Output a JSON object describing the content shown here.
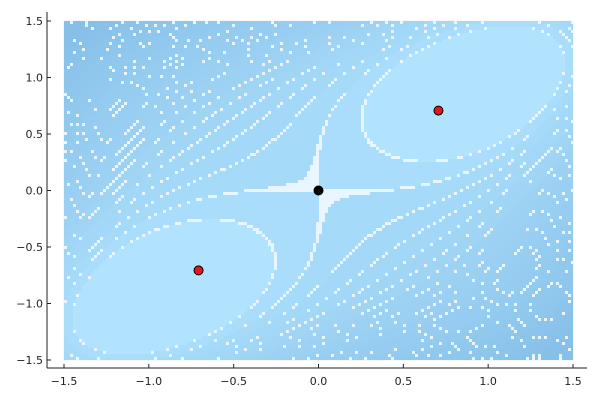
{
  "chart_data": {
    "type": "contour",
    "title": "",
    "xlabel": "",
    "ylabel": "",
    "xlim": [
      -1.5,
      1.5
    ],
    "ylim": [
      -1.5,
      1.5
    ],
    "xticks": [
      -1.5,
      -1.0,
      -0.5,
      0.0,
      0.5,
      1.0,
      1.5
    ],
    "yticks": [
      -1.5,
      -1.0,
      -0.5,
      0.0,
      0.5,
      1.0,
      1.5
    ],
    "tick_labels_x": [
      "−1.5",
      "−1.0",
      "−0.5",
      "0.0",
      "0.5",
      "1.0",
      "1.5"
    ],
    "tick_labels_y": [
      "−1.5",
      "−1.0",
      "−0.5",
      "0.0",
      "0.5",
      "1.0",
      "1.5"
    ],
    "grid": true,
    "legend": "none",
    "colors": {
      "fill_low": "#b1e3ff",
      "fill_high": "#86bfe8",
      "contour_line": "#e9f6ff",
      "minima_marker": "#e8141b",
      "saddle_marker": "#000000"
    },
    "points": [
      {
        "name": "minimum",
        "x": -0.707,
        "y": -0.707,
        "color": "#e8141b"
      },
      {
        "name": "saddle",
        "x": 0.0,
        "y": 0.0,
        "color": "#000000"
      },
      {
        "name": "minimum",
        "x": 0.707,
        "y": 0.707,
        "color": "#e8141b"
      }
    ]
  }
}
